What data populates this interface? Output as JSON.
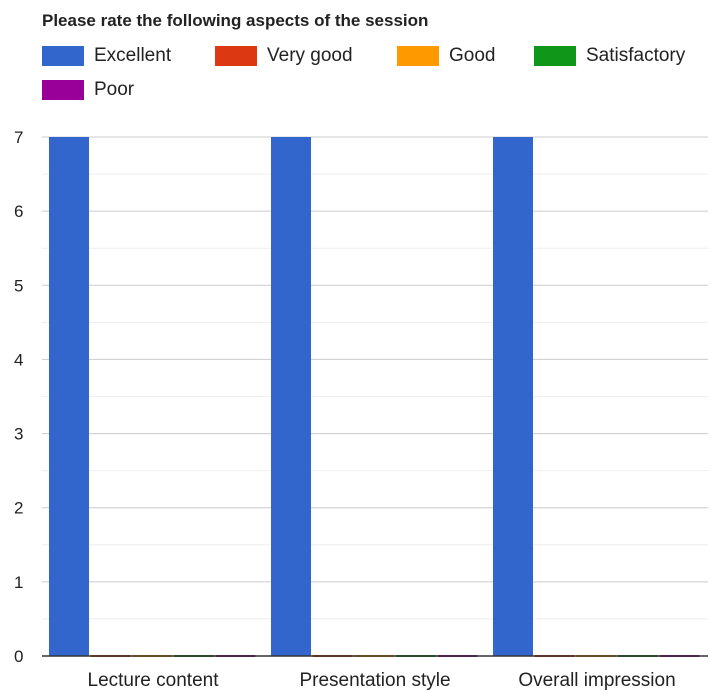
{
  "chart_data": {
    "type": "bar",
    "title": "Please rate the following aspects of the session",
    "xlabel": "",
    "ylabel": "",
    "categories": [
      "Lecture content",
      "Presentation style",
      "Overall impression"
    ],
    "ylim": [
      0,
      7
    ],
    "yticks": [
      0,
      1,
      2,
      3,
      4,
      5,
      6,
      7
    ],
    "grid": true,
    "legend_position": "top",
    "series": [
      {
        "name": "Excellent",
        "color": "#3366cc",
        "values": [
          7,
          7,
          7
        ]
      },
      {
        "name": "Very good",
        "color": "#dc3912",
        "values": [
          0,
          0,
          0
        ]
      },
      {
        "name": "Good",
        "color": "#ff9900",
        "values": [
          0,
          0,
          0
        ]
      },
      {
        "name": "Satisfactory",
        "color": "#109618",
        "values": [
          0,
          0,
          0
        ]
      },
      {
        "name": "Poor",
        "color": "#990099",
        "values": [
          0,
          0,
          0
        ]
      }
    ]
  }
}
